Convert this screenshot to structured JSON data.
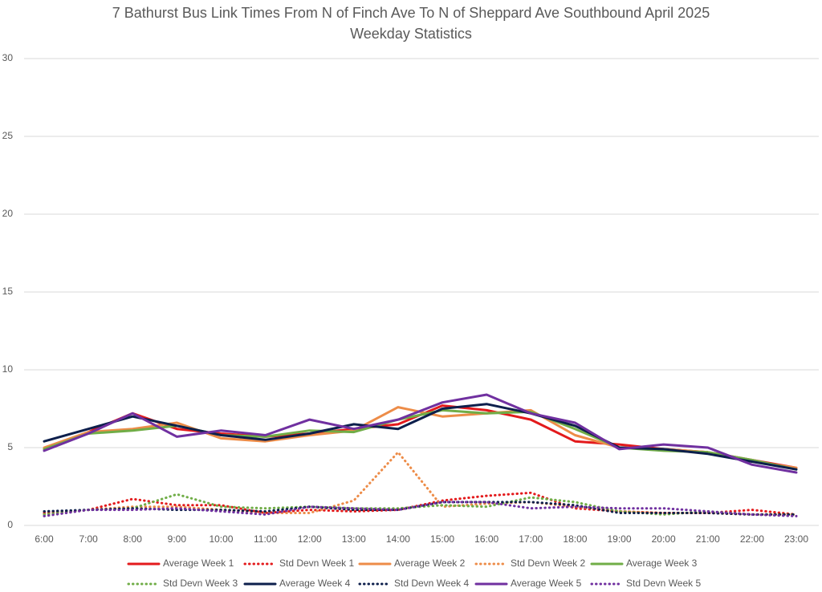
{
  "chart_data": {
    "type": "line",
    "title": "7 Bathurst Bus Link Times From N of Finch Ave To N of Sheppard Ave Southbound April 2025",
    "subtitle": "Weekday Statistics",
    "categories": [
      "6:00",
      "7:00",
      "8:00",
      "9:00",
      "10:00",
      "11:00",
      "12:00",
      "13:00",
      "14:00",
      "15:00",
      "16:00",
      "17:00",
      "18:00",
      "19:00",
      "20:00",
      "21:00",
      "22:00",
      "23:00"
    ],
    "ylim": [
      0,
      30
    ],
    "yticks": [
      0,
      5,
      10,
      15,
      20,
      25,
      30
    ],
    "grid": true,
    "legend": "bottom",
    "series": [
      {
        "name": "Average Week 1",
        "color": "#e31a1c",
        "style": "solid",
        "values": [
          4.9,
          6.0,
          7.2,
          6.2,
          5.9,
          5.7,
          5.9,
          6.2,
          6.5,
          7.7,
          7.4,
          6.8,
          5.4,
          5.2,
          4.9,
          4.7,
          4.2,
          3.7
        ]
      },
      {
        "name": "Std Devn Week 1",
        "color": "#e31a1c",
        "style": "dotted",
        "values": [
          0.8,
          1.0,
          1.7,
          1.3,
          1.3,
          0.8,
          1.0,
          0.9,
          1.0,
          1.6,
          1.9,
          2.1,
          1.1,
          0.9,
          0.8,
          0.8,
          1.0,
          0.7
        ]
      },
      {
        "name": "Average Week 2",
        "color": "#ed8c48",
        "style": "solid",
        "values": [
          5.0,
          6.0,
          6.2,
          6.6,
          5.6,
          5.4,
          5.8,
          6.1,
          7.6,
          7.0,
          7.2,
          7.4,
          5.8,
          5.0,
          4.9,
          4.7,
          4.1,
          3.7
        ]
      },
      {
        "name": "Std Devn Week 2",
        "color": "#ed8c48",
        "style": "dotted",
        "values": [
          0.7,
          1.0,
          1.2,
          1.2,
          1.0,
          0.8,
          0.8,
          1.6,
          4.7,
          1.2,
          1.4,
          1.5,
          1.2,
          0.9,
          0.8,
          0.8,
          0.7,
          0.7
        ]
      },
      {
        "name": "Average Week 3",
        "color": "#70ad47",
        "style": "solid",
        "values": [
          4.9,
          5.9,
          6.1,
          6.4,
          5.8,
          5.7,
          6.1,
          6.0,
          6.8,
          7.4,
          7.2,
          7.3,
          6.2,
          5.0,
          4.8,
          4.7,
          4.2,
          3.6
        ]
      },
      {
        "name": "Std Devn Week 3",
        "color": "#70ad47",
        "style": "dotted",
        "values": [
          0.7,
          1.0,
          1.1,
          2.0,
          1.2,
          1.1,
          1.2,
          1.1,
          1.1,
          1.3,
          1.2,
          1.8,
          1.5,
          0.9,
          0.7,
          0.9,
          0.7,
          0.7
        ]
      },
      {
        "name": "Average Week 4",
        "color": "#0d1f4c",
        "style": "solid",
        "values": [
          5.4,
          6.2,
          7.0,
          6.4,
          5.8,
          5.5,
          5.9,
          6.5,
          6.2,
          7.5,
          7.8,
          7.2,
          6.4,
          5.0,
          4.9,
          4.6,
          4.1,
          3.6
        ]
      },
      {
        "name": "Std Devn Week 4",
        "color": "#0d1f4c",
        "style": "dotted",
        "values": [
          0.9,
          1.0,
          1.1,
          1.0,
          1.0,
          0.9,
          1.2,
          1.0,
          1.0,
          1.5,
          1.5,
          1.5,
          1.3,
          0.8,
          0.8,
          0.8,
          0.7,
          0.7
        ]
      },
      {
        "name": "Average Week 5",
        "color": "#7030a0",
        "style": "solid",
        "values": [
          4.8,
          5.9,
          7.2,
          5.7,
          6.1,
          5.8,
          6.8,
          6.2,
          6.8,
          7.9,
          8.4,
          7.2,
          6.6,
          4.9,
          5.2,
          5.0,
          3.9,
          3.4
        ]
      },
      {
        "name": "Std Devn Week 5",
        "color": "#7030a0",
        "style": "dotted",
        "values": [
          0.6,
          1.0,
          1.0,
          1.1,
          0.9,
          0.7,
          1.2,
          1.1,
          1.0,
          1.5,
          1.5,
          1.1,
          1.2,
          1.1,
          1.1,
          0.9,
          0.7,
          0.6
        ]
      }
    ]
  }
}
